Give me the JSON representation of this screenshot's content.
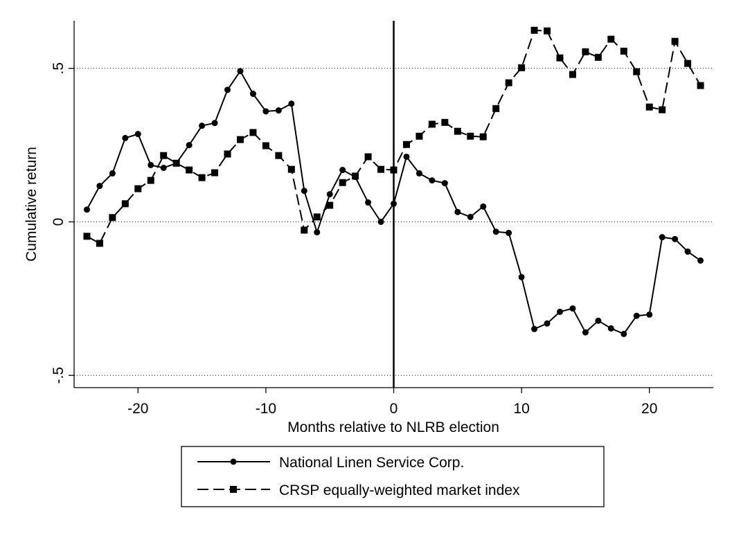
{
  "chart_data": {
    "type": "line",
    "x_label": "Months relative to NLRB election",
    "y_label": "Cumulative return",
    "x": [
      -24,
      -23,
      -22,
      -21,
      -20,
      -19,
      -18,
      -17,
      -16,
      -15,
      -14,
      -13,
      -12,
      -11,
      -10,
      -9,
      -8,
      -7,
      -6,
      -5,
      -4,
      -3,
      -2,
      -1,
      0,
      1,
      2,
      3,
      4,
      5,
      6,
      7,
      8,
      9,
      10,
      11,
      12,
      13,
      14,
      15,
      16,
      17,
      18,
      19,
      20,
      21,
      22,
      23,
      24
    ],
    "series": [
      {
        "name": "National Linen Service Corp.",
        "color": "#000000",
        "marker": "circle",
        "dash": "solid",
        "values": [
          0.04,
          0.117,
          0.158,
          0.273,
          0.286,
          0.185,
          0.176,
          0.191,
          0.25,
          0.313,
          0.322,
          0.43,
          0.491,
          0.417,
          0.36,
          0.363,
          0.385,
          0.101,
          -0.034,
          0.09,
          0.169,
          0.146,
          0.063,
          0.0,
          0.059,
          0.212,
          0.158,
          0.135,
          0.126,
          0.032,
          0.016,
          0.05,
          -0.032,
          -0.036,
          -0.18,
          -0.349,
          -0.331,
          -0.293,
          -0.282,
          -0.36,
          -0.322,
          -0.347,
          -0.365,
          -0.306,
          -0.302,
          -0.05,
          -0.056,
          -0.097,
          -0.126
        ]
      },
      {
        "name": "CRSP equally-weighted market index",
        "color": "#000000",
        "marker": "square",
        "dash": "dashed",
        "values": [
          -0.047,
          -0.07,
          0.014,
          0.059,
          0.108,
          0.135,
          0.216,
          0.191,
          0.169,
          0.144,
          0.16,
          0.221,
          0.268,
          0.291,
          0.248,
          0.216,
          0.171,
          -0.027,
          0.016,
          0.054,
          0.128,
          0.149,
          0.212,
          0.171,
          0.169,
          0.252,
          0.279,
          0.318,
          0.324,
          0.295,
          0.279,
          0.277,
          0.369,
          0.453,
          0.502,
          0.624,
          0.622,
          0.534,
          0.48,
          0.554,
          0.536,
          0.595,
          0.556,
          0.489,
          0.374,
          0.365,
          0.588,
          0.516,
          0.444
        ]
      }
    ],
    "xlim": [
      -25,
      25
    ],
    "ylim": [
      -0.54,
      0.655
    ],
    "xticks": [
      -20,
      -10,
      0,
      10,
      20
    ],
    "yticks": [
      {
        "value": -0.5,
        "label": "-.5"
      },
      0,
      {
        "value": 0.5,
        "label": ".5"
      }
    ],
    "grid": "dotted",
    "reference_line_x": 0,
    "legend": "bottom"
  }
}
